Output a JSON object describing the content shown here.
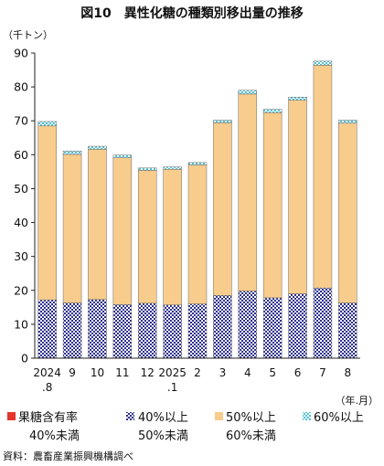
{
  "source": "資料：農畜産業振興機構調べ",
  "chart_data": {
    "type": "bar",
    "stacked": true,
    "title": "図10　異性化糖の種類別移出量の推移",
    "ylabel": "（千トン）",
    "xlabel": "（年.月）",
    "ylim": [
      0,
      90
    ],
    "yticks": [
      0,
      10,
      20,
      30,
      40,
      50,
      60,
      70,
      80,
      90
    ],
    "grid": false,
    "legend_position": "bottom",
    "bar_edge_color": "#6b6b6b",
    "categories": [
      [
        "2024",
        ".8"
      ],
      [
        "9"
      ],
      [
        "10"
      ],
      [
        "11"
      ],
      [
        "12"
      ],
      [
        "2025",
        ".1"
      ],
      [
        "2"
      ],
      [
        "3"
      ],
      [
        "4"
      ],
      [
        "5"
      ],
      [
        "6"
      ],
      [
        "7"
      ],
      [
        "8"
      ]
    ],
    "series": [
      {
        "name": [
          "果糖含有率",
          "40%未満"
        ],
        "color": "#e5352b",
        "pattern": "solid",
        "values": [
          0.1,
          0.1,
          0.1,
          0.1,
          0.1,
          0.1,
          0.1,
          0.1,
          0.1,
          0.1,
          0.1,
          0.1,
          0.1
        ]
      },
      {
        "name": [
          "40%以上",
          "50%未満"
        ],
        "color": "#2e3192",
        "pattern": "checker",
        "values": [
          17.1,
          16.2,
          17.2,
          15.7,
          16.1,
          15.6,
          15.9,
          18.4,
          19.7,
          17.7,
          18.9,
          20.6,
          16.2
        ]
      },
      {
        "name": [
          "50%以上",
          "60%未満"
        ],
        "color": "#f8cc8c",
        "pattern": "solid",
        "values": [
          51.3,
          43.8,
          44.3,
          43.3,
          39.2,
          40.0,
          41.0,
          50.9,
          58.1,
          54.6,
          57.1,
          65.7,
          53.0
        ]
      },
      {
        "name": [
          "60%以上"
        ],
        "color": "#4fc3d6",
        "pattern": "checker",
        "values": [
          1.3,
          1.0,
          0.9,
          0.8,
          0.7,
          0.7,
          0.7,
          0.8,
          1.1,
          1.0,
          0.9,
          1.2,
          0.9
        ]
      }
    ]
  }
}
